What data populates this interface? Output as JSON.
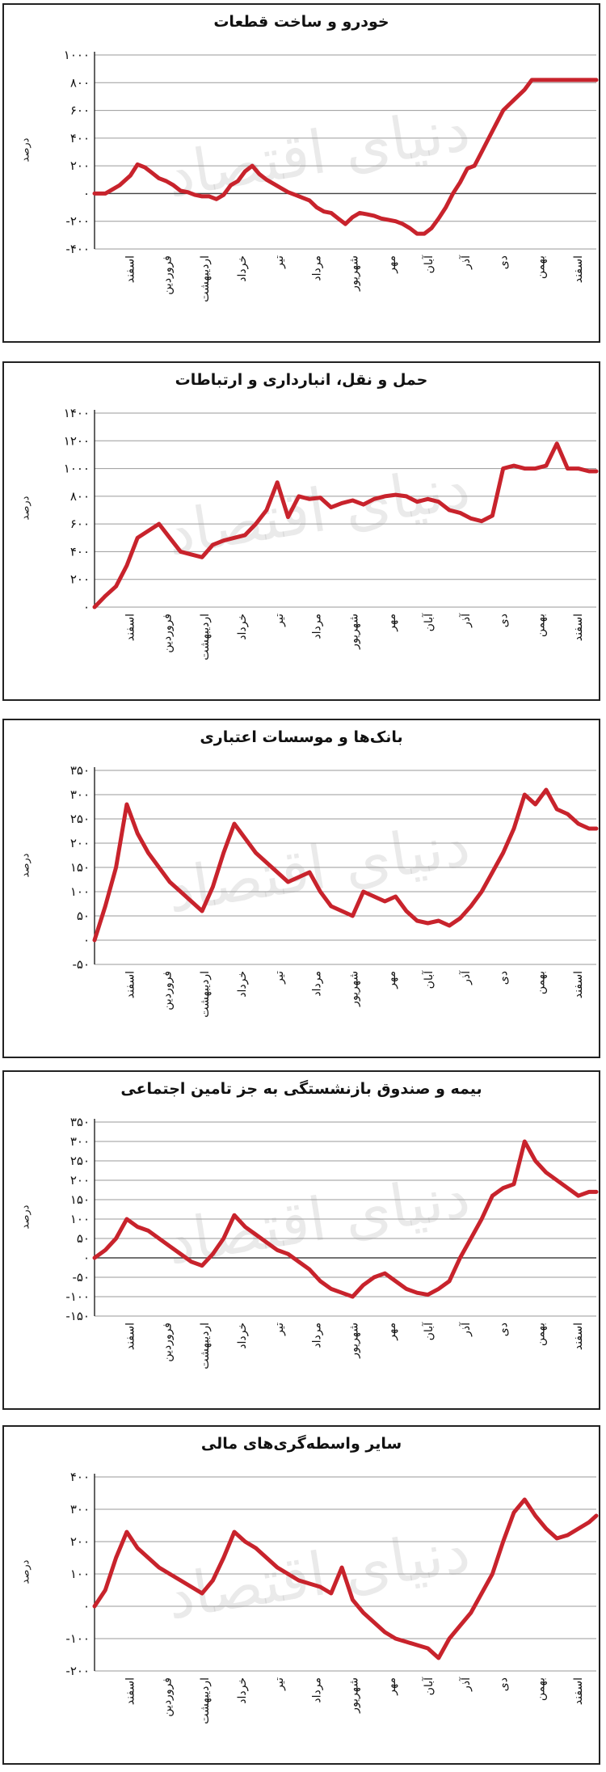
{
  "watermark": "دنیای اقتصاد",
  "line_color": "#c8232c",
  "chart_data": [
    {
      "type": "line",
      "title": "خودرو و ساخت قطعات",
      "ylabel": "درصد",
      "yticks": [
        1000,
        800,
        600,
        400,
        200,
        0,
        -200,
        -400
      ],
      "ytick_labels": [
        "۱۰۰۰",
        "۸۰۰",
        "۶۰۰",
        "۴۰۰",
        "۲۰۰",
        "۰",
        "-۲۰۰",
        "-۴۰۰"
      ],
      "ylim": [
        -400,
        1000
      ],
      "zero_line": true,
      "xlabels": [
        "اسفند",
        "فروردین",
        "اردیبهشت",
        "خرداد",
        "تیر",
        "مرداد",
        "شهریور",
        "مهر",
        "آبان",
        "آذر",
        "دی",
        "بهمن",
        "اسفند"
      ],
      "x": [
        0,
        0.3,
        0.5,
        0.7,
        1,
        1.2,
        1.4,
        1.6,
        1.8,
        2,
        2.2,
        2.4,
        2.6,
        2.8,
        3,
        3.2,
        3.4,
        3.6,
        3.8,
        4,
        4.2,
        4.4,
        4.6,
        4.8,
        5,
        5.2,
        5.4,
        5.6,
        5.8,
        6,
        6.2,
        6.4,
        6.6,
        6.8,
        7,
        7.2,
        7.4,
        7.6,
        7.8,
        8,
        8.2,
        8.4,
        8.6,
        8.8,
        9,
        9.2,
        9.4,
        9.6,
        9.8,
        10,
        10.2,
        10.4,
        10.6,
        10.8,
        11,
        11.2,
        11.4,
        11.6,
        11.8,
        12,
        12.2,
        12.4,
        12.6,
        12.8,
        13,
        13.2,
        13.4,
        13.6,
        13.8,
        14
      ],
      "values": [
        0,
        0,
        30,
        60,
        130,
        210,
        190,
        150,
        110,
        90,
        60,
        20,
        10,
        -10,
        -20,
        -20,
        -40,
        -10,
        60,
        90,
        160,
        200,
        140,
        100,
        70,
        40,
        10,
        -10,
        -30,
        -50,
        -100,
        -130,
        -140,
        -180,
        -220,
        -170,
        -140,
        -150,
        -160,
        -180,
        -190,
        -200,
        -220,
        -250,
        -290,
        -290,
        -250,
        -180,
        -100,
        0,
        80,
        180,
        200,
        300,
        400,
        500,
        600,
        650,
        700,
        750,
        820,
        820,
        820,
        820,
        820,
        820,
        820,
        820,
        820,
        820
      ]
    },
    {
      "type": "line",
      "title": "حمل و نقل، انبارداری و ارتباطات",
      "ylabel": "درصد",
      "yticks": [
        1400,
        1200,
        1000,
        800,
        600,
        400,
        200,
        0
      ],
      "ytick_labels": [
        "۱۴۰۰",
        "۱۲۰۰",
        "۱۰۰۰",
        "۸۰۰",
        "۶۰۰",
        "۴۰۰",
        "۲۰۰",
        "۰"
      ],
      "ylim": [
        0,
        1400
      ],
      "zero_line": false,
      "xlabels": [
        "اسفند",
        "فروردین",
        "اردیبهشت",
        "خرداد",
        "تیر",
        "مرداد",
        "شهریور",
        "مهر",
        "آبان",
        "آذر",
        "دی",
        "بهمن",
        "اسفند"
      ],
      "x": [
        0,
        0.3,
        0.6,
        0.9,
        1.2,
        1.5,
        1.8,
        2.1,
        2.4,
        2.7,
        3,
        3.3,
        3.6,
        3.9,
        4.2,
        4.5,
        4.8,
        5.1,
        5.4,
        5.7,
        6,
        6.3,
        6.6,
        6.9,
        7.2,
        7.5,
        7.8,
        8.1,
        8.4,
        8.7,
        9,
        9.3,
        9.6,
        9.9,
        10.2,
        10.5,
        10.8,
        11.1,
        11.4,
        11.7,
        12,
        12.3,
        12.6,
        12.9,
        13.2,
        13.5,
        13.8,
        14
      ],
      "values": [
        0,
        80,
        150,
        300,
        500,
        550,
        600,
        500,
        400,
        380,
        360,
        450,
        480,
        500,
        520,
        600,
        700,
        900,
        650,
        800,
        780,
        790,
        720,
        750,
        770,
        740,
        780,
        800,
        810,
        800,
        760,
        780,
        760,
        700,
        680,
        640,
        620,
        660,
        1000,
        1020,
        1000,
        1000,
        1020,
        1180,
        1000,
        1000,
        980,
        980
      ]
    },
    {
      "type": "line",
      "title": "بانک‌ها و موسسات اعتباری",
      "ylabel": "درصد",
      "yticks": [
        350,
        300,
        250,
        200,
        150,
        100,
        50,
        0,
        -50
      ],
      "ytick_labels": [
        "۳۵۰",
        "۳۰۰",
        "۲۵۰",
        "۲۰۰",
        "۱۵۰",
        "۱۰۰",
        "۵۰",
        "۰",
        "-۵۰"
      ],
      "ylim": [
        -50,
        350
      ],
      "zero_line": false,
      "xlabels": [
        "اسفند",
        "فروردین",
        "اردیبهشت",
        "خرداد",
        "تیر",
        "مرداد",
        "شهریور",
        "مهر",
        "آبان",
        "آذر",
        "دی",
        "بهمن",
        "اسفند"
      ],
      "x": [
        0,
        0.3,
        0.6,
        0.9,
        1.2,
        1.5,
        1.8,
        2.1,
        2.4,
        2.7,
        3,
        3.3,
        3.6,
        3.9,
        4.2,
        4.5,
        4.8,
        5.1,
        5.4,
        5.7,
        6,
        6.3,
        6.6,
        6.9,
        7.2,
        7.5,
        7.8,
        8.1,
        8.4,
        8.7,
        9,
        9.3,
        9.6,
        9.9,
        10.2,
        10.5,
        10.8,
        11.1,
        11.4,
        11.7,
        12,
        12.3,
        12.6,
        12.9,
        13.2,
        13.5,
        13.8,
        14
      ],
      "values": [
        0,
        70,
        150,
        280,
        220,
        180,
        150,
        120,
        100,
        80,
        60,
        110,
        180,
        240,
        210,
        180,
        160,
        140,
        120,
        130,
        140,
        100,
        70,
        60,
        50,
        100,
        90,
        80,
        90,
        60,
        40,
        35,
        40,
        30,
        45,
        70,
        100,
        140,
        180,
        230,
        300,
        280,
        310,
        270,
        260,
        240,
        230,
        230
      ]
    },
    {
      "type": "line",
      "title": "بیمه و صندوق بازنشستگی به جز تامین اجتماعی",
      "ylabel": "درصد",
      "yticks": [
        350,
        300,
        250,
        200,
        150,
        100,
        50,
        0,
        -50,
        -100,
        -150
      ],
      "ytick_labels": [
        "۳۵۰",
        "۳۰۰",
        "۲۵۰",
        "۲۰۰",
        "۱۵۰",
        "۱۰۰",
        "۵۰",
        "۰",
        "-۵۰",
        "-۱۰۰",
        "-۱۵۰"
      ],
      "ylim": [
        -150,
        350
      ],
      "zero_line": true,
      "xlabels": [
        "اسفند",
        "فروردین",
        "اردیبهشت",
        "خرداد",
        "تیر",
        "مرداد",
        "شهریور",
        "مهر",
        "آبان",
        "آذر",
        "دی",
        "بهمن",
        "اسفند"
      ],
      "x": [
        0,
        0.3,
        0.6,
        0.9,
        1.2,
        1.5,
        1.8,
        2.1,
        2.4,
        2.7,
        3,
        3.3,
        3.6,
        3.9,
        4.2,
        4.5,
        4.8,
        5.1,
        5.4,
        5.7,
        6,
        6.3,
        6.6,
        6.9,
        7.2,
        7.5,
        7.8,
        8.1,
        8.4,
        8.7,
        9,
        9.3,
        9.6,
        9.9,
        10.2,
        10.5,
        10.8,
        11.1,
        11.4,
        11.7,
        12,
        12.3,
        12.6,
        12.9,
        13.2,
        13.5,
        13.8,
        14
      ],
      "values": [
        0,
        20,
        50,
        100,
        80,
        70,
        50,
        30,
        10,
        -10,
        -20,
        10,
        50,
        110,
        80,
        60,
        40,
        20,
        10,
        -10,
        -30,
        -60,
        -80,
        -90,
        -100,
        -70,
        -50,
        -40,
        -60,
        -80,
        -90,
        -95,
        -80,
        -60,
        0,
        50,
        100,
        160,
        180,
        190,
        300,
        250,
        220,
        200,
        180,
        160,
        170,
        170
      ]
    },
    {
      "type": "line",
      "title": "سایر واسطه‌گری‌های مالی",
      "ylabel": "درصد",
      "yticks": [
        400,
        300,
        200,
        100,
        0,
        -100,
        -200
      ],
      "ytick_labels": [
        "۴۰۰",
        "۳۰۰",
        "۲۰۰",
        "۱۰۰",
        "۰",
        "-۱۰۰",
        "-۲۰۰"
      ],
      "ylim": [
        -200,
        400
      ],
      "zero_line": false,
      "xlabels": [
        "اسفند",
        "فروردین",
        "اردیبهشت",
        "خرداد",
        "تیر",
        "مرداد",
        "شهریور",
        "مهر",
        "آبان",
        "آذر",
        "دی",
        "بهمن",
        "اسفند"
      ],
      "x": [
        0,
        0.3,
        0.6,
        0.9,
        1.2,
        1.5,
        1.8,
        2.1,
        2.4,
        2.7,
        3,
        3.3,
        3.6,
        3.9,
        4.2,
        4.5,
        4.8,
        5.1,
        5.4,
        5.7,
        6,
        6.3,
        6.6,
        6.9,
        7.2,
        7.5,
        7.8,
        8.1,
        8.4,
        8.7,
        9,
        9.3,
        9.6,
        9.9,
        10.2,
        10.5,
        10.8,
        11.1,
        11.4,
        11.7,
        12,
        12.3,
        12.6,
        12.9,
        13.2,
        13.5,
        13.8,
        14
      ],
      "values": [
        0,
        50,
        150,
        230,
        180,
        150,
        120,
        100,
        80,
        60,
        40,
        80,
        150,
        230,
        200,
        180,
        150,
        120,
        100,
        80,
        70,
        60,
        40,
        120,
        20,
        -20,
        -50,
        -80,
        -100,
        -110,
        -120,
        -130,
        -160,
        -100,
        -60,
        -20,
        40,
        100,
        200,
        290,
        330,
        280,
        240,
        210,
        220,
        240,
        260,
        280
      ]
    }
  ]
}
